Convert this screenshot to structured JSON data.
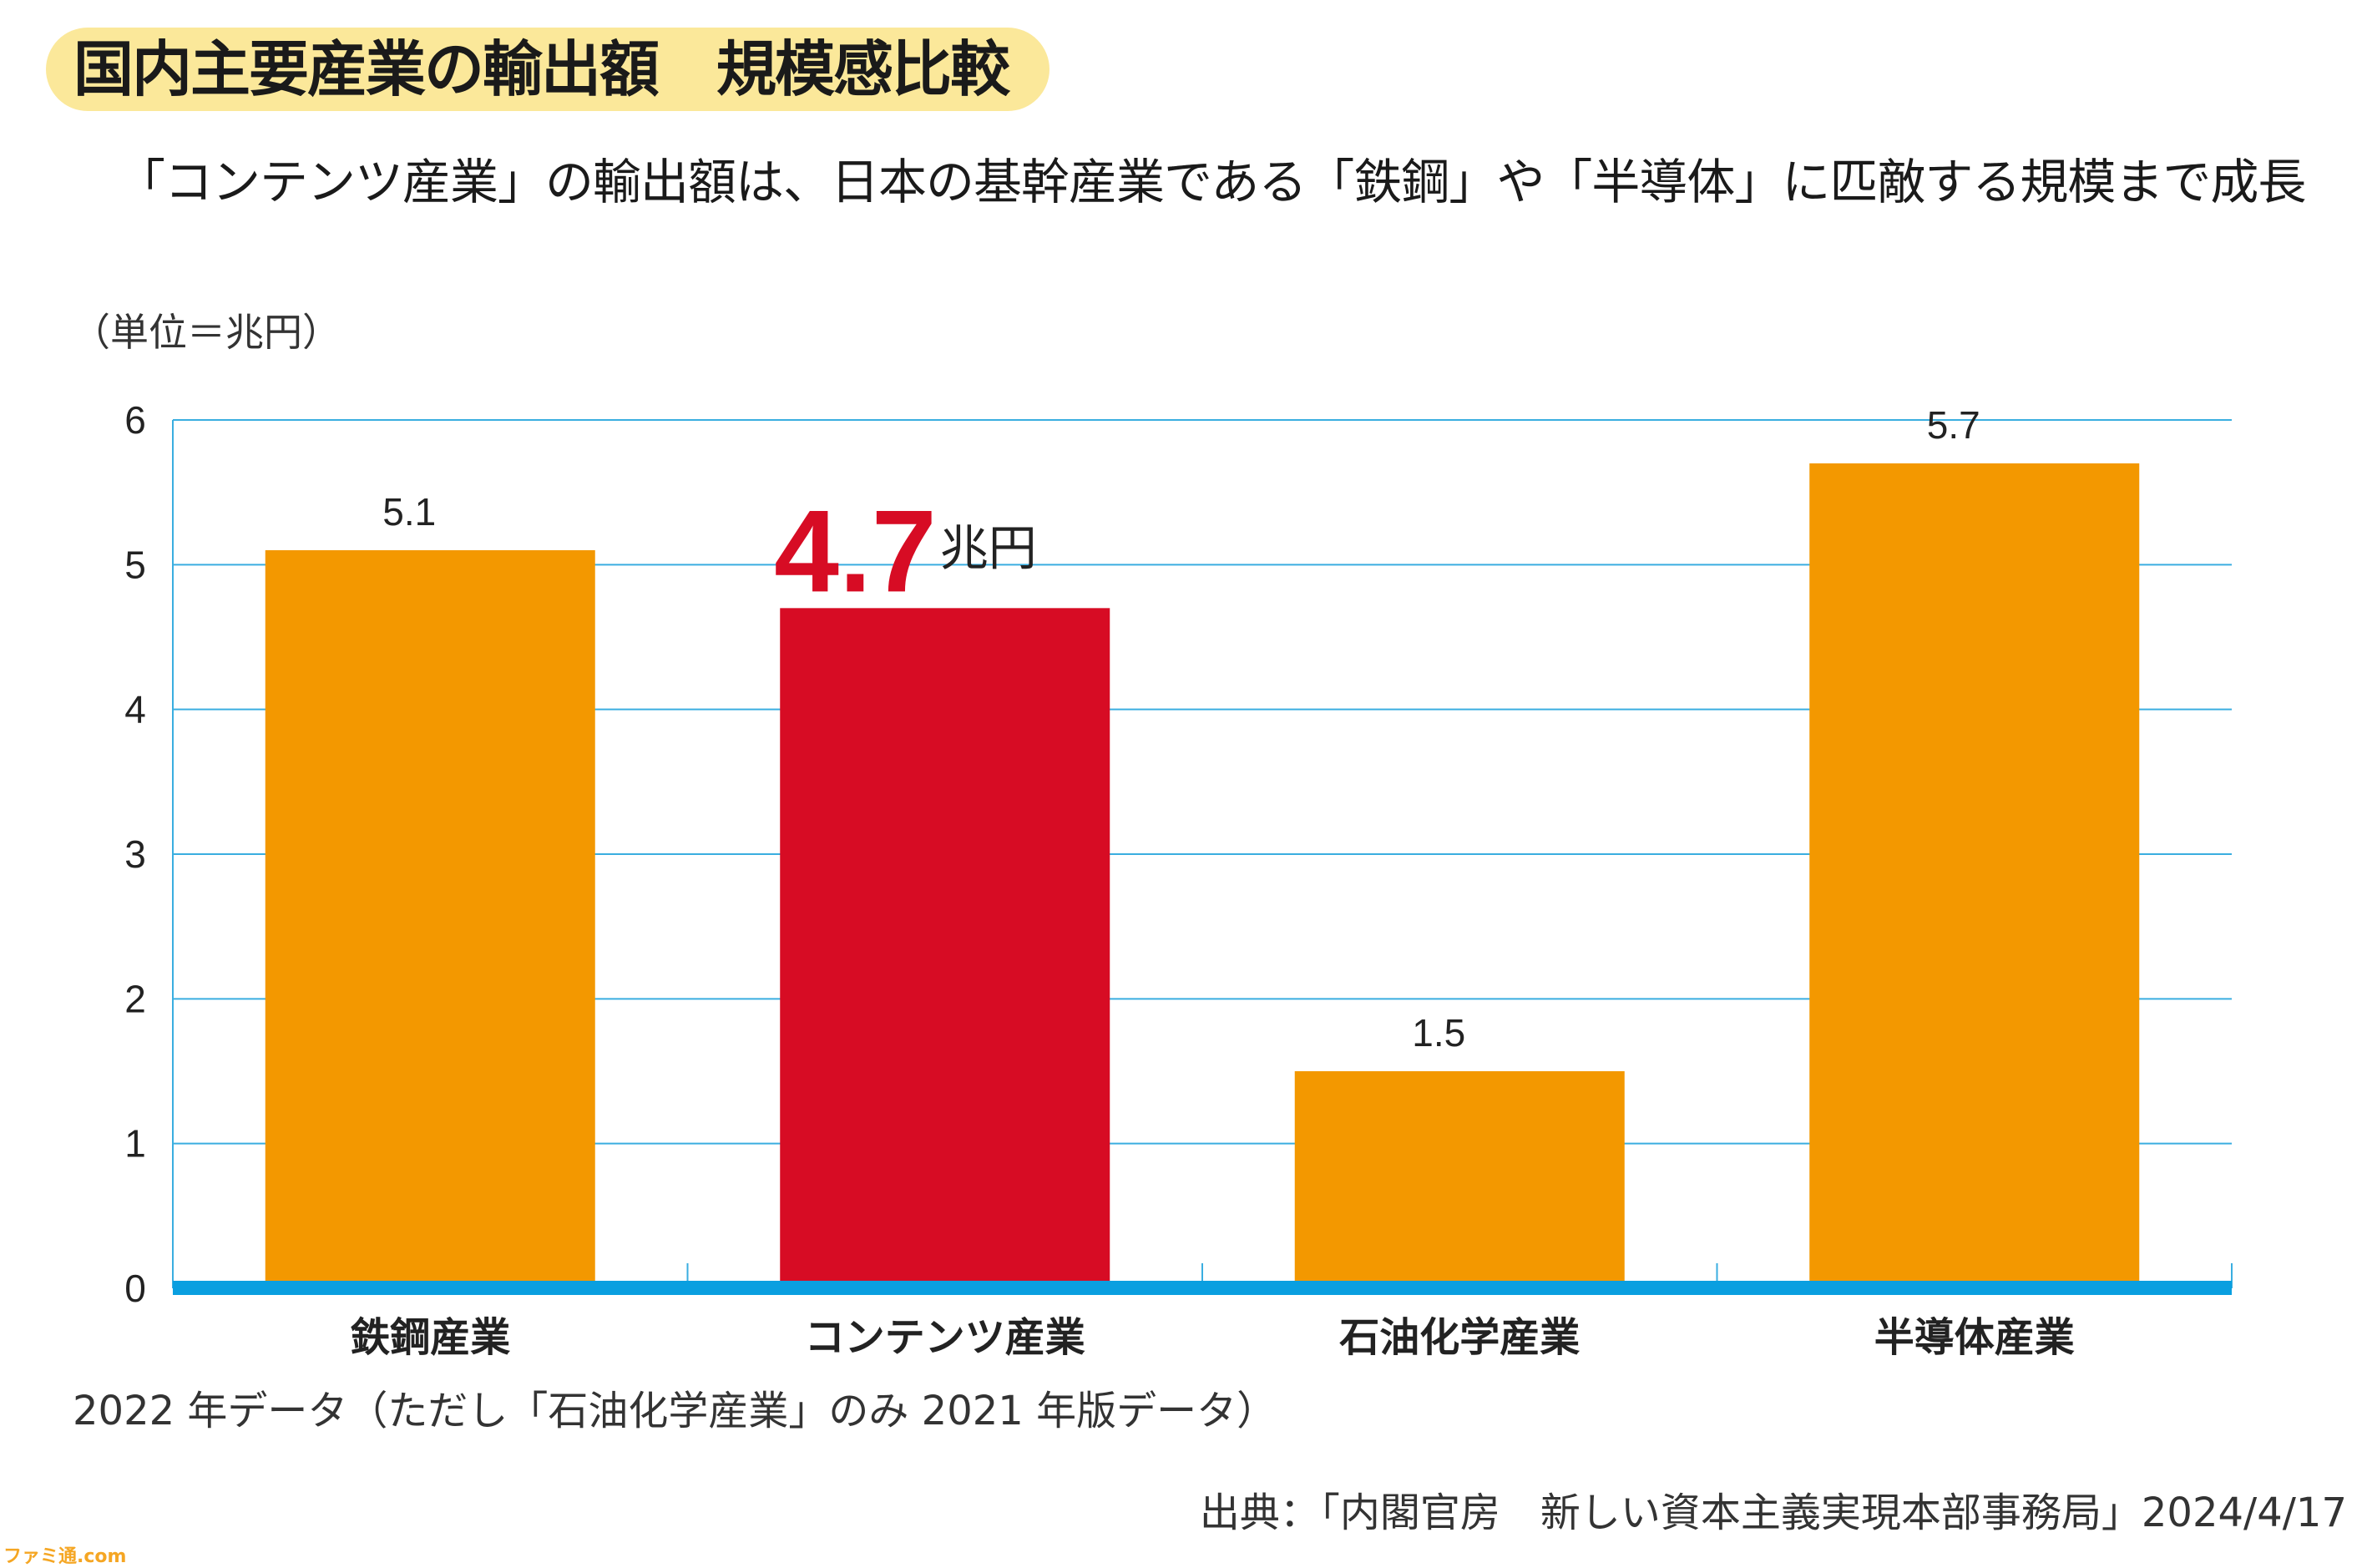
{
  "title": "国内主要産業の輸出額　規模感比較",
  "subtitle": "「コンテンツ産業」の輸出額は、日本の基幹産業である「鉄鋼」や「半導体」に匹敵する規模まで成長",
  "footnote": "2022 年データ（ただし「石油化学産業」のみ 2021 年版データ）",
  "source": "出典：「内閣官房　新しい資本主義実現本部事務局」2024/4/17",
  "watermark": "ファミ通.com",
  "chart_data": {
    "type": "bar",
    "unit_label": "（単位＝兆円）",
    "categories": [
      "鉄鋼産業",
      "コンテンツ産業",
      "石油化学産業",
      "半導体産業"
    ],
    "values": [
      5.1,
      4.7,
      1.5,
      5.7
    ],
    "data_labels": [
      "5.1",
      "4.7",
      "1.5",
      "5.7"
    ],
    "highlight_index": 1,
    "highlight_suffix": "兆円",
    "ylim": [
      0,
      6
    ],
    "yticks": [
      "0",
      "1",
      "2",
      "3",
      "4",
      "5",
      "6"
    ],
    "grid": true,
    "colors": {
      "bar": "#f39800",
      "highlight": "#d70c24",
      "grid": "#3aaee0",
      "baseline": "#0a9fe0"
    }
  }
}
